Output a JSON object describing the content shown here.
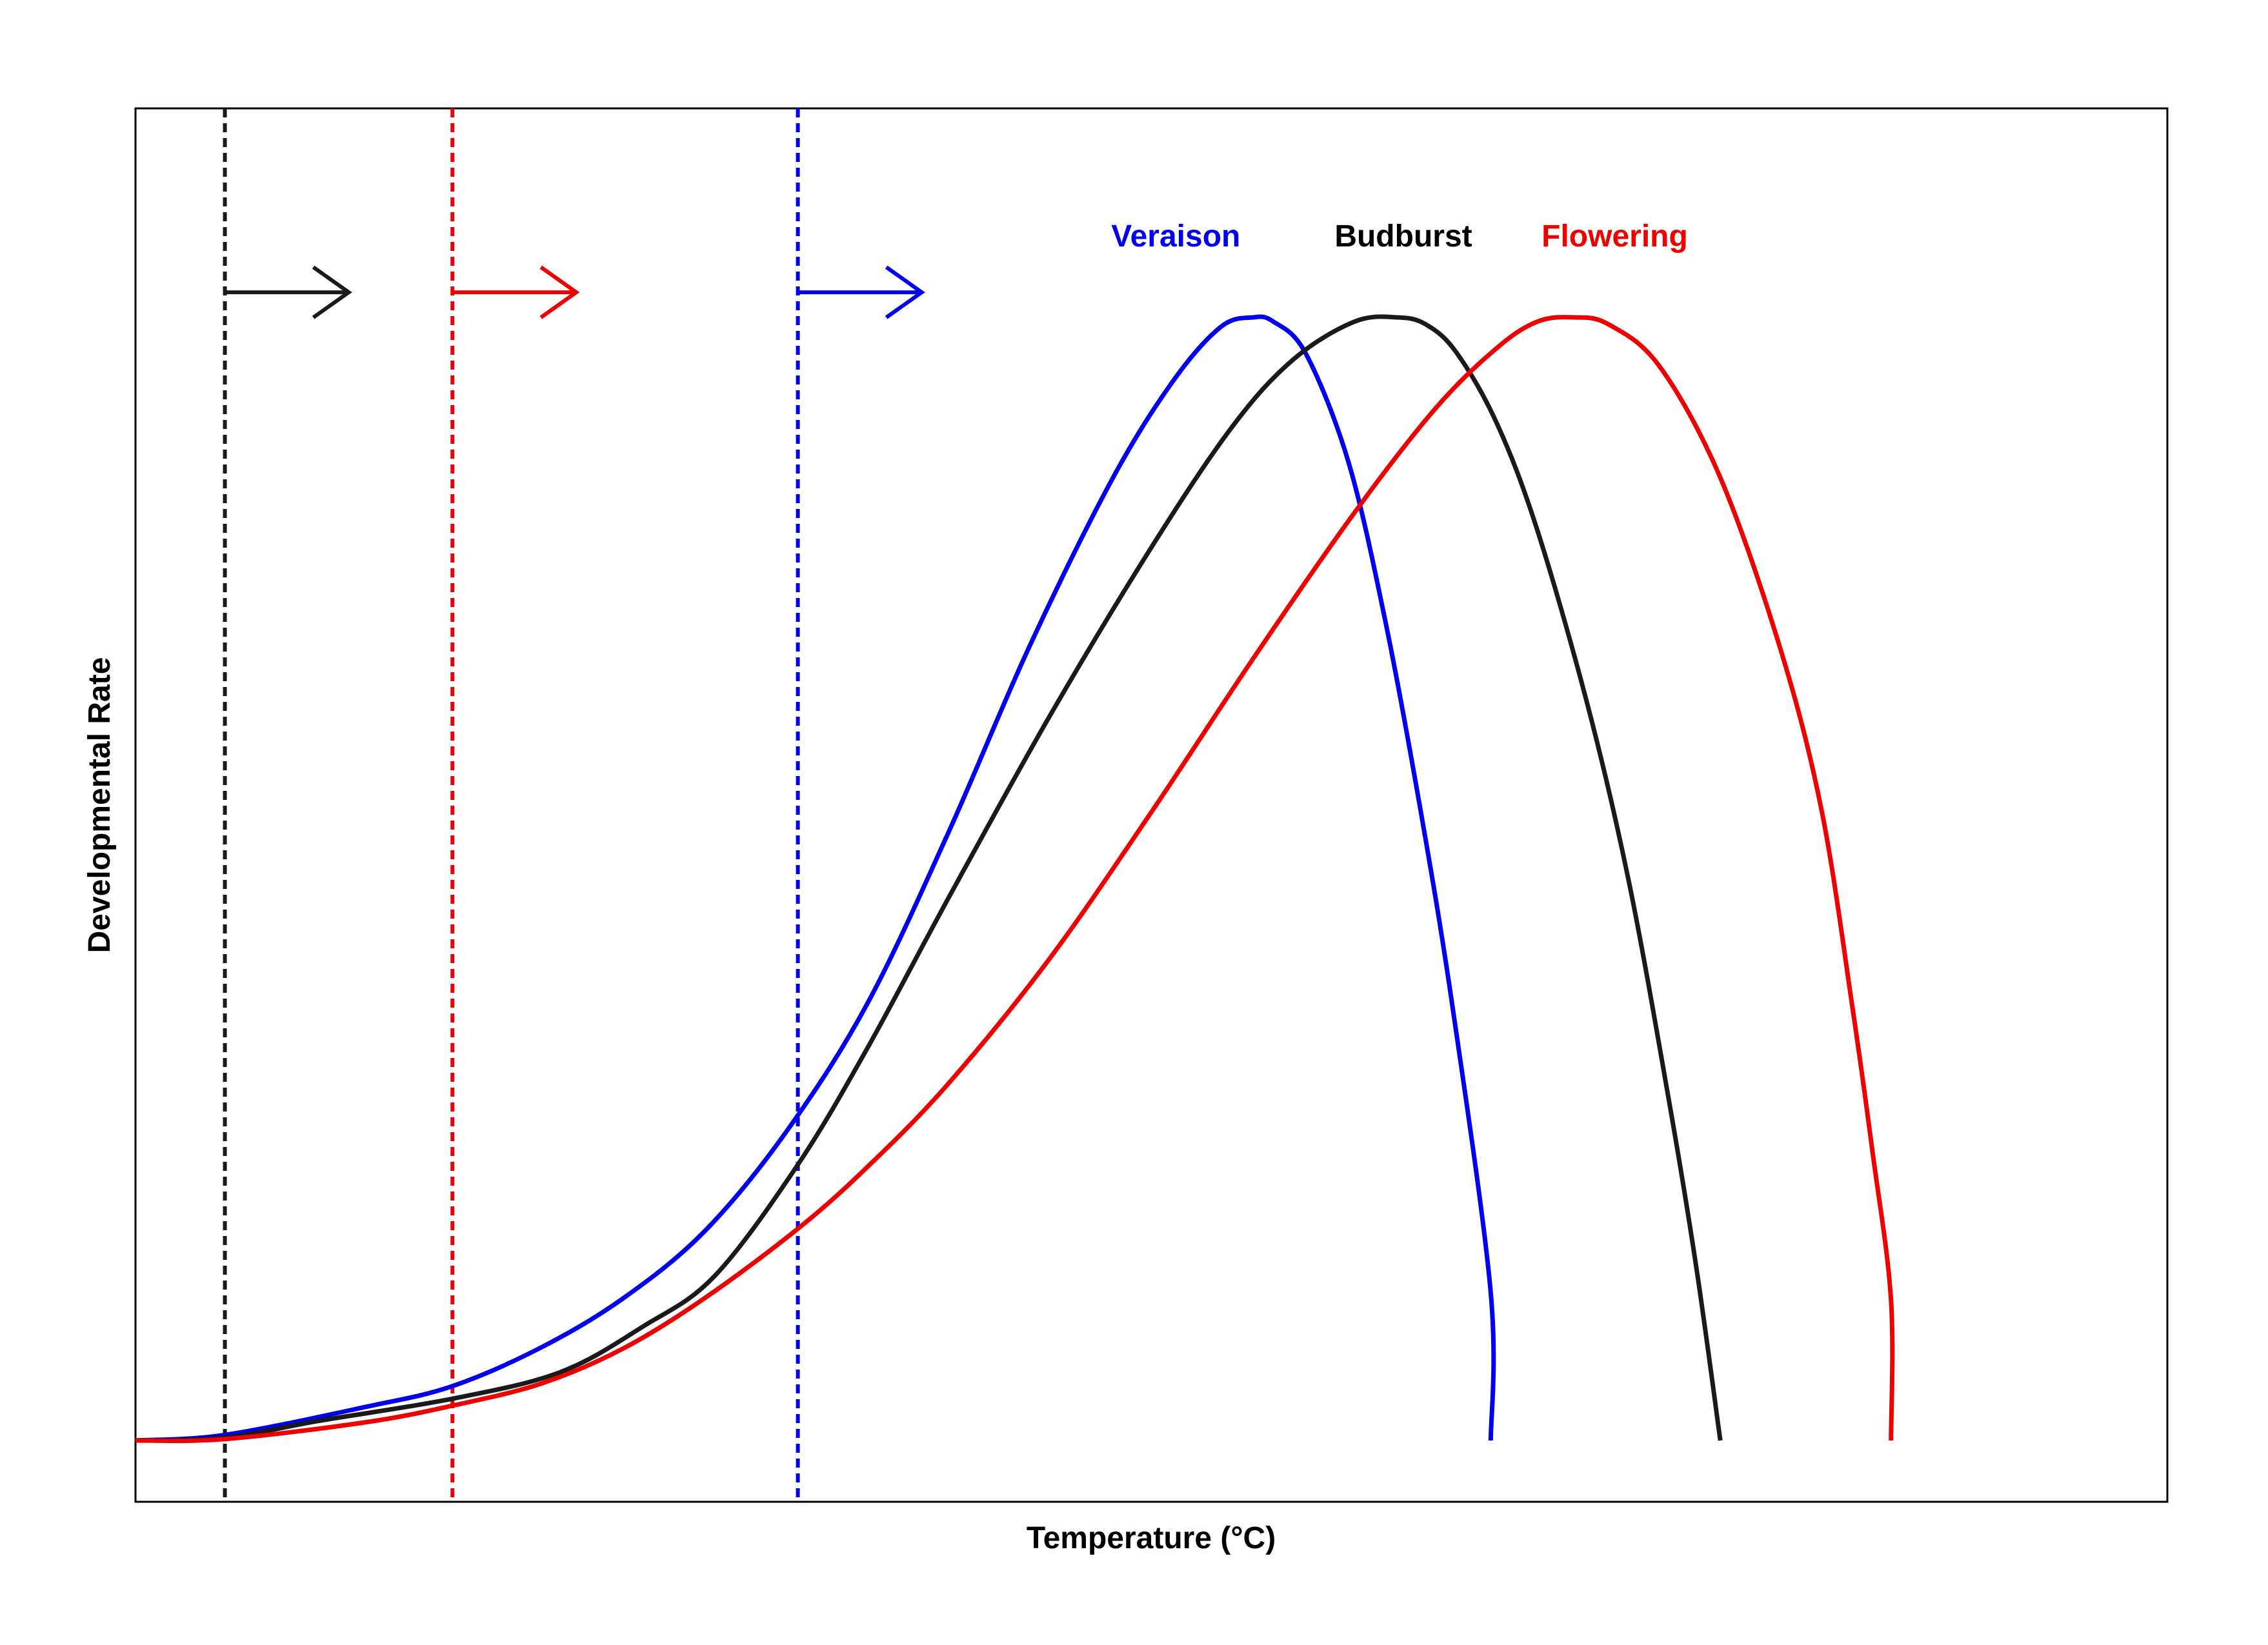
{
  "chart_data": {
    "type": "line",
    "title": "",
    "xlabel": "Temperature (°C)",
    "ylabel": "Developmental Rate",
    "x_ticks_shown": false,
    "y_ticks_shown": false,
    "grid": false,
    "legend": "none",
    "xlim": [
      0,
      100
    ],
    "ylim": [
      0,
      100
    ],
    "series": [
      {
        "name": "Veraison",
        "color": "#0000ee",
        "points": [
          [
            0,
            4.4
          ],
          [
            4.4,
            4.8
          ],
          [
            11.3,
            6.8
          ],
          [
            15.6,
            8.3
          ],
          [
            20.0,
            11.1
          ],
          [
            24.0,
            14.6
          ],
          [
            28.0,
            19.4
          ],
          [
            32.0,
            26.5
          ],
          [
            36.0,
            35.7
          ],
          [
            40.0,
            48.0
          ],
          [
            44.0,
            61.4
          ],
          [
            48.0,
            73.2
          ],
          [
            51.0,
            80.3
          ],
          [
            53.4,
            84.3
          ],
          [
            55.0,
            85.0
          ],
          [
            56.0,
            84.7
          ],
          [
            57.6,
            82.4
          ],
          [
            59.7,
            74.6
          ],
          [
            61.5,
            63.3
          ],
          [
            63.2,
            50.0
          ],
          [
            64.8,
            35.7
          ],
          [
            66.7,
            15.0
          ],
          [
            66.7,
            4.4
          ]
        ]
      },
      {
        "name": "Budburst",
        "color": "#1a1a1a",
        "points": [
          [
            0,
            4.4
          ],
          [
            4.4,
            4.6
          ],
          [
            9.0,
            5.8
          ],
          [
            15.6,
            7.4
          ],
          [
            20.9,
            9.3
          ],
          [
            25.0,
            12.6
          ],
          [
            28.5,
            16.2
          ],
          [
            32.6,
            24.2
          ],
          [
            36.0,
            32.5
          ],
          [
            40.0,
            43.3
          ],
          [
            45.0,
            56.4
          ],
          [
            50.0,
            68.5
          ],
          [
            54.0,
            77.2
          ],
          [
            57.0,
            82.0
          ],
          [
            60.0,
            84.7
          ],
          [
            62.1,
            85.0
          ],
          [
            63.5,
            84.5
          ],
          [
            65.0,
            82.5
          ],
          [
            67.0,
            77.4
          ],
          [
            69.0,
            69.7
          ],
          [
            71.5,
            57.0
          ],
          [
            73.5,
            44.5
          ],
          [
            75.4,
            29.4
          ],
          [
            76.8,
            17.0
          ],
          [
            78.0,
            4.4
          ]
        ]
      },
      {
        "name": "Flowering",
        "color": "#ee0000",
        "points": [
          [
            0,
            4.4
          ],
          [
            4.4,
            4.5
          ],
          [
            11.3,
            5.7
          ],
          [
            15.6,
            6.9
          ],
          [
            20.0,
            8.5
          ],
          [
            24.0,
            11.0
          ],
          [
            28.0,
            14.6
          ],
          [
            32.6,
            19.6
          ],
          [
            36.0,
            24.0
          ],
          [
            40.0,
            30.0
          ],
          [
            45.0,
            39.0
          ],
          [
            50.0,
            49.5
          ],
          [
            55.0,
            60.5
          ],
          [
            60.0,
            71.0
          ],
          [
            64.0,
            78.5
          ],
          [
            67.0,
            82.8
          ],
          [
            69.0,
            84.7
          ],
          [
            70.8,
            85.0
          ],
          [
            72.5,
            84.5
          ],
          [
            75.0,
            81.5
          ],
          [
            78.0,
            73.5
          ],
          [
            81.0,
            61.0
          ],
          [
            83.0,
            49.5
          ],
          [
            84.5,
            35.5
          ],
          [
            85.5,
            25.0
          ],
          [
            86.4,
            14.5
          ],
          [
            86.4,
            4.4
          ]
        ]
      }
    ],
    "thresholds": [
      {
        "series": "Budburst",
        "x": 4.4,
        "color": "#1a1a1a",
        "arrow_y": 86.8
      },
      {
        "series": "Flowering",
        "x": 15.6,
        "color": "#ee0000",
        "arrow_y": 86.8
      },
      {
        "series": "Veraison",
        "x": 32.6,
        "color": "#0000ee",
        "arrow_y": 86.8
      }
    ],
    "labels": [
      {
        "text": "Veraison",
        "x": 51.2,
        "y": 90.1,
        "color": "#0000ee"
      },
      {
        "text": "Budburst",
        "x": 62.4,
        "y": 90.1,
        "color": "#000000"
      },
      {
        "text": "Flowering",
        "x": 72.8,
        "y": 90.1,
        "color": "#ee0000"
      }
    ]
  }
}
